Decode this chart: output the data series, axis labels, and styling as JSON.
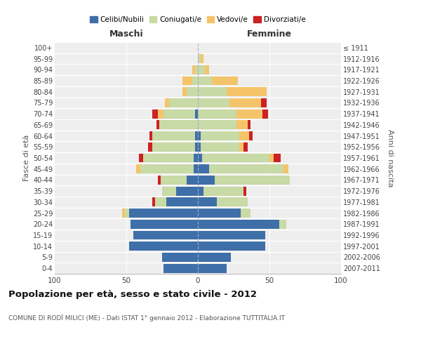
{
  "age_groups": [
    "0-4",
    "5-9",
    "10-14",
    "15-19",
    "20-24",
    "25-29",
    "30-34",
    "35-39",
    "40-44",
    "45-49",
    "50-54",
    "55-59",
    "60-64",
    "65-69",
    "70-74",
    "75-79",
    "80-84",
    "85-89",
    "90-94",
    "95-99",
    "100+"
  ],
  "birth_years": [
    "2007-2011",
    "2002-2006",
    "1997-2001",
    "1992-1996",
    "1987-1991",
    "1982-1986",
    "1977-1981",
    "1972-1976",
    "1967-1971",
    "1962-1966",
    "1957-1961",
    "1952-1956",
    "1947-1951",
    "1942-1946",
    "1937-1941",
    "1932-1936",
    "1927-1931",
    "1922-1926",
    "1917-1921",
    "1912-1916",
    "≤ 1911"
  ],
  "maschi_celibi": [
    24,
    25,
    48,
    45,
    47,
    48,
    22,
    15,
    8,
    3,
    3,
    2,
    2,
    0,
    2,
    0,
    0,
    0,
    0,
    0,
    0
  ],
  "maschi_coniugati": [
    0,
    0,
    0,
    0,
    0,
    3,
    8,
    10,
    18,
    37,
    35,
    30,
    30,
    27,
    22,
    20,
    8,
    4,
    2,
    0,
    0
  ],
  "maschi_vedovi": [
    0,
    0,
    0,
    0,
    0,
    2,
    0,
    0,
    0,
    3,
    0,
    0,
    0,
    0,
    4,
    3,
    3,
    7,
    2,
    0,
    0
  ],
  "maschi_divorziati": [
    0,
    0,
    0,
    0,
    0,
    0,
    2,
    0,
    2,
    0,
    3,
    3,
    2,
    2,
    4,
    0,
    0,
    0,
    0,
    0,
    0
  ],
  "femmine_celibi": [
    20,
    23,
    47,
    47,
    57,
    30,
    13,
    4,
    12,
    8,
    3,
    2,
    2,
    0,
    0,
    0,
    0,
    0,
    0,
    0,
    0
  ],
  "femmine_coniugati": [
    0,
    0,
    0,
    0,
    5,
    7,
    22,
    28,
    52,
    52,
    47,
    27,
    27,
    27,
    27,
    22,
    20,
    10,
    5,
    2,
    0
  ],
  "femmine_vedovi": [
    0,
    0,
    0,
    0,
    0,
    0,
    0,
    0,
    0,
    3,
    3,
    3,
    7,
    8,
    18,
    22,
    28,
    18,
    3,
    2,
    0
  ],
  "femmine_divorziati": [
    0,
    0,
    0,
    0,
    0,
    0,
    0,
    2,
    0,
    0,
    5,
    3,
    2,
    2,
    4,
    4,
    0,
    0,
    0,
    0,
    0
  ],
  "colors": {
    "celibi": "#3e6fa8",
    "coniugati": "#c8daa5",
    "vedovi": "#f5c46a",
    "divorziati": "#cc2222"
  },
  "xlim": 100,
  "title": "Popolazione per età, sesso e stato civile - 2012",
  "subtitle": "COMUNE DI RODÌ MILICI (ME) - Dati ISTAT 1° gennaio 2012 - Elaborazione TUTTITALIA.IT",
  "ylabel_left": "Fasce di età",
  "ylabel_right": "Anni di nascita",
  "xlabel_left": "Maschi",
  "xlabel_right": "Femmine",
  "legend_labels": [
    "Celibi/Nubili",
    "Coniugati/e",
    "Vedovi/e",
    "Divorziati/e"
  ],
  "background_color": "#eeeeee",
  "bar_height": 0.82
}
